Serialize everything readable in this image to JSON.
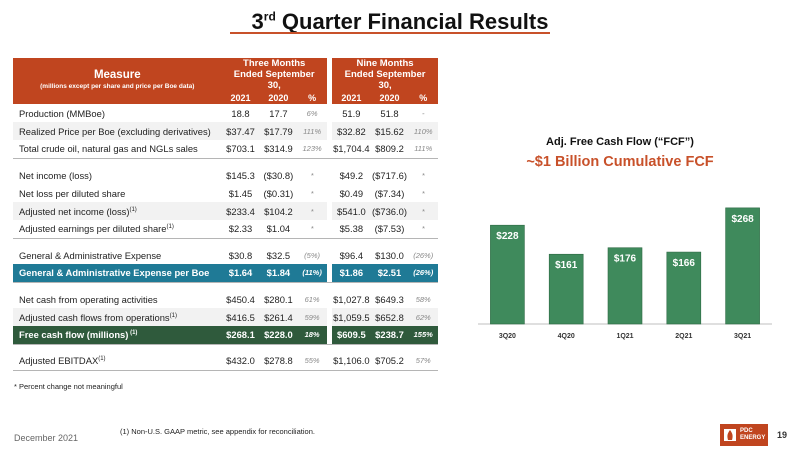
{
  "slide": {
    "title_main": "3",
    "title_sup": "rd",
    "title_rest": " Quarter Financial Results",
    "date": "December 2021",
    "page_number": "19",
    "note": "* Percent change not meaningful",
    "footnote": "(1) Non-U.S. GAAP metric, see appendix for reconciliation.",
    "logo_text_line1": "PDC",
    "logo_text_line2": "ENERGY",
    "accent_color": "#c0451f",
    "blue_color": "#1f7a96",
    "green_color": "#2f5a3c"
  },
  "table": {
    "measure_label": "Measure",
    "measure_sub": "(millions except per share and price per Boe data)",
    "group1": "Three Months Ended September 30,",
    "group2": "Nine Months Ended September 30,",
    "col_2021": "2021",
    "col_2020": "2020",
    "col_pct": "%",
    "rows": [
      {
        "label": "Production (MMBoe)",
        "sup": "",
        "a": "18.8",
        "b": "17.7",
        "p": "6%",
        "c": "51.9",
        "d": "51.8",
        "q": "-"
      },
      {
        "label": "Realized Price per Boe (excluding derivatives)",
        "sup": "",
        "a": "$37.47",
        "b": "$17.79",
        "p": "111%",
        "c": "$32.82",
        "d": "$15.62",
        "q": "110%"
      },
      {
        "label": "Total crude oil, natural gas and NGLs sales",
        "sup": "",
        "a": "$703.1",
        "b": "$314.9",
        "p": "123%",
        "c": "$1,704.4",
        "d": "$809.2",
        "q": "111%"
      },
      {
        "label": "Net income (loss)",
        "sup": "",
        "a": "$145.3",
        "b": "($30.8)",
        "p": "*",
        "c": "$49.2",
        "d": "($717.6)",
        "q": "*"
      },
      {
        "label": "Net loss per diluted share",
        "sup": "",
        "a": "$1.45",
        "b": "($0.31)",
        "p": "*",
        "c": "$0.49",
        "d": "($7.34)",
        "q": "*"
      },
      {
        "label": "Adjusted net income (loss)",
        "sup": "(1)",
        "a": "$233.4",
        "b": "$104.2",
        "p": "*",
        "c": "$541.0",
        "d": "($736.0)",
        "q": "*"
      },
      {
        "label": "Adjusted earnings per diluted share",
        "sup": "(1)",
        "a": "$2.33",
        "b": "$1.04",
        "p": "*",
        "c": "$5.38",
        "d": "($7.53)",
        "q": "*"
      },
      {
        "label": "General & Administrative Expense",
        "sup": "",
        "a": "$30.8",
        "b": "$32.5",
        "p": "(5%)",
        "c": "$96.4",
        "d": "$130.0",
        "q": "(26%)"
      },
      {
        "label": "General & Administrative Expense per Boe",
        "sup": "",
        "a": "$1.64",
        "b": "$1.84",
        "p": "(11%)",
        "c": "$1.86",
        "d": "$2.51",
        "q": "(26%)"
      },
      {
        "label": "Net cash from operating activities",
        "sup": "",
        "a": "$450.4",
        "b": "$280.1",
        "p": "61%",
        "c": "$1,027.8",
        "d": "$649.3",
        "q": "58%"
      },
      {
        "label": "Adjusted cash flows from operations",
        "sup": "(1)",
        "a": "$416.5",
        "b": "$261.4",
        "p": "59%",
        "c": "$1,059.5",
        "d": "$652.8",
        "q": "62%"
      },
      {
        "label": "Free cash flow (millions)",
        "sup": " (1)",
        "a": "$268.1",
        "b": "$228.0",
        "p": "18%",
        "c": "$609.5",
        "d": "$238.7",
        "q": "155%"
      },
      {
        "label": "Adjusted EBITDAX",
        "sup": "(1)",
        "a": "$432.0",
        "b": "$278.8",
        "p": "55%",
        "c": "$1,106.0",
        "d": "$705.2",
        "q": "57%"
      }
    ]
  },
  "chart_data": {
    "type": "bar",
    "title": "Adj. Free Cash Flow (“FCF”)",
    "subtitle": "~$1 Billion Cumulative FCF",
    "categories": [
      "3Q20",
      "4Q20",
      "1Q21",
      "2Q21",
      "3Q21"
    ],
    "values": [
      228,
      161,
      176,
      166,
      268
    ],
    "value_labels": [
      "$228",
      "$161",
      "$176",
      "$166",
      "$268"
    ],
    "bar_color": "#3f8a5c",
    "ylim": [
      0,
      300
    ],
    "grid": false
  }
}
